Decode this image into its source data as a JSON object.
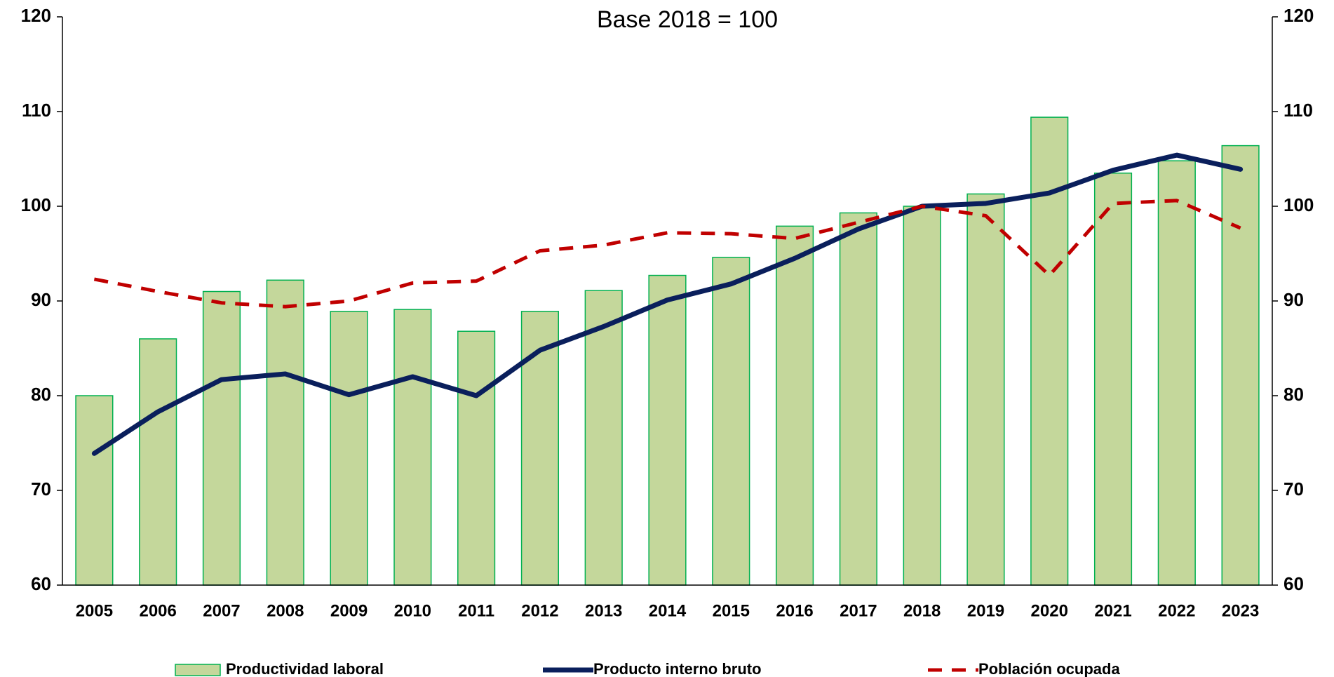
{
  "chart_data": {
    "type": "bar_line",
    "subtitle": "Base 2018 = 100",
    "categories": [
      "2005",
      "2006",
      "2007",
      "2008",
      "2009",
      "2010",
      "2011",
      "2012",
      "2013",
      "2014",
      "2015",
      "2016",
      "2017",
      "2018",
      "2019",
      "2020",
      "2021",
      "2022",
      "2023"
    ],
    "series": [
      {
        "name": "Productividad laboral",
        "type": "bar",
        "color": "#c4d79b",
        "edge": "#00b050",
        "values": [
          80,
          86,
          91,
          92.2,
          88.9,
          89.1,
          86.8,
          88.9,
          91.1,
          92.7,
          94.6,
          97.9,
          99.3,
          100,
          101.3,
          109.4,
          103.5,
          104.8,
          106.4
        ]
      },
      {
        "name": "Producto interno bruto",
        "type": "line",
        "color": "#0a1f5c",
        "values": [
          73.9,
          78.3,
          81.7,
          82.3,
          80.1,
          82.0,
          80.0,
          84.8,
          87.3,
          90.1,
          91.8,
          94.5,
          97.6,
          100,
          100.3,
          101.4,
          103.8,
          105.4,
          103.9
        ]
      },
      {
        "name": "Población ocupada",
        "type": "dashed",
        "color": "#c00000",
        "values": [
          92.3,
          91.0,
          89.8,
          89.4,
          90.0,
          91.9,
          92.1,
          95.3,
          95.9,
          97.2,
          97.1,
          96.6,
          98.3,
          100,
          99.0,
          92.7,
          100.3,
          100.6,
          97.7
        ]
      }
    ],
    "ylim": [
      60,
      120
    ],
    "yticks": [
      60,
      70,
      80,
      90,
      100,
      110,
      120
    ],
    "y2lim": [
      60,
      120
    ],
    "y2ticks": [
      60,
      70,
      80,
      90,
      100,
      110,
      120
    ]
  }
}
